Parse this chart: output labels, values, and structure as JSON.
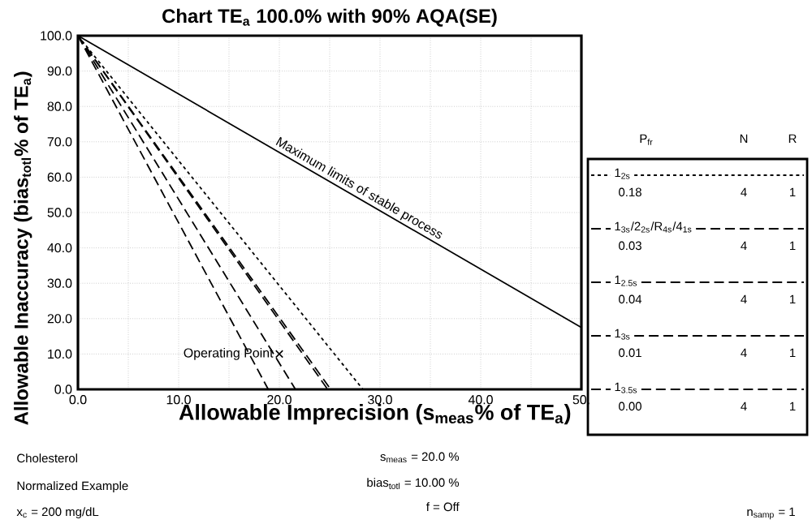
{
  "chart_data": {
    "type": "line",
    "title": "Chart TE$_{a}$ 100.0% with 90% AQA(SE)",
    "xlabel": "Allowable Imprecision (s$_{meas}$% of TE$_{a}$)",
    "ylabel": "Allowable Inaccuracy (bias$_{totl}$% of TE$_{a}$)",
    "xlim": [
      0,
      50
    ],
    "ylim": [
      0,
      100
    ],
    "xticks": [
      {
        "value": 0,
        "label": "0.0"
      },
      {
        "value": 5,
        "label": null
      },
      {
        "value": 10,
        "label": "10.0"
      },
      {
        "value": 15,
        "label": null
      },
      {
        "value": 20,
        "label": "20.0"
      },
      {
        "value": 25,
        "label": null
      },
      {
        "value": 30,
        "label": "30.0"
      },
      {
        "value": 35,
        "label": null
      },
      {
        "value": 40,
        "label": "40.0"
      },
      {
        "value": 45,
        "label": null
      },
      {
        "value": 50,
        "label": "50."
      }
    ],
    "yticks": [
      {
        "value": 0,
        "label": "0.0"
      },
      {
        "value": 10,
        "label": "10.0"
      },
      {
        "value": 20,
        "label": "20.0"
      },
      {
        "value": 30,
        "label": "30.0"
      },
      {
        "value": 40,
        "label": "40.0"
      },
      {
        "value": 50,
        "label": "50.0"
      },
      {
        "value": 60,
        "label": "60.0"
      },
      {
        "value": 70,
        "label": "70.0"
      },
      {
        "value": 80,
        "label": "80.0"
      },
      {
        "value": 90,
        "label": "90.0"
      },
      {
        "value": 100,
        "label": "100.0"
      }
    ],
    "grid": true,
    "legend": "right",
    "series": [
      {
        "name": "Maximum limits of stable process",
        "color": "#000000",
        "x": [
          0,
          50
        ],
        "values": [
          100,
          17.5
        ]
      },
      {
        "name": "1$_{2s}$",
        "color": "#000000",
        "line_style": "dotted",
        "x": [
          0,
          28.3
        ],
        "values": [
          100,
          0
        ]
      },
      {
        "name": "1$_{3s}$/2$_{2s}$/R$_{4s}$/4$_{1s}$",
        "color": "#000000",
        "line_style": "dashed",
        "x": [
          0,
          25.1
        ],
        "values": [
          100,
          0
        ]
      },
      {
        "name": "1$_{2.5s}$",
        "color": "#000000",
        "line_style": "dashed",
        "x": [
          0,
          24.8
        ],
        "values": [
          100,
          0
        ]
      },
      {
        "name": "1$_{3s}$",
        "color": "#000000",
        "line_style": "dashed",
        "x": [
          0,
          21.6
        ],
        "values": [
          100,
          0
        ]
      },
      {
        "name": "1$_{3.5s}$",
        "color": "#000000",
        "line_style": "dashed",
        "x": [
          0,
          18.9
        ],
        "values": [
          100,
          0
        ]
      },
      {
        "name": "Operating Point",
        "type": "scatter",
        "marker": "cross",
        "color": "#000000",
        "x": [
          20
        ],
        "values": [
          10
        ]
      }
    ],
    "annotations": [
      "P$_{fr}$",
      "N",
      "R",
      "0.18",
      "4",
      "1",
      "0.03",
      "4",
      "1",
      "0.04",
      "4",
      "1",
      "0.01",
      "4",
      "1",
      "0.00",
      "4",
      "1",
      "Cholesterol",
      "Normalized Example",
      "x$_{c}$ = 200 mg/dL",
      "s$_{meas}$ = 20.0 %",
      "bias$_{totl}$ = 10.00 %",
      "f = Off",
      "n$_{samp}$ = 1"
    ]
  }
}
